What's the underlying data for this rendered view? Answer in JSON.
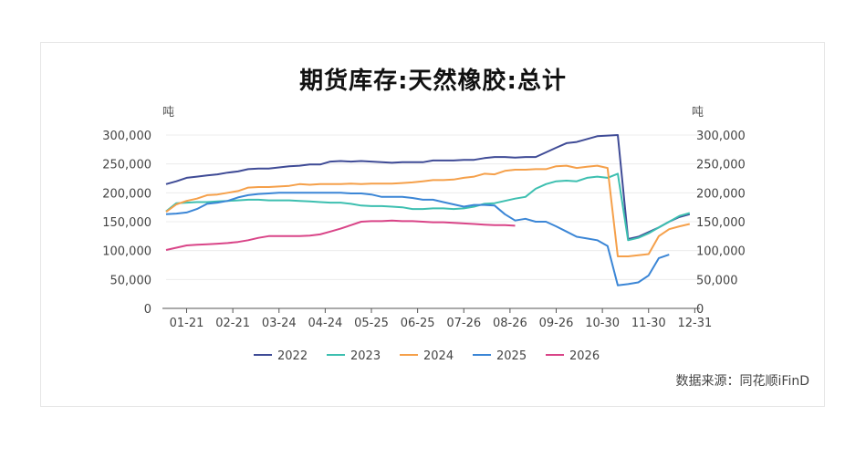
{
  "chart_data": {
    "type": "line",
    "title": "期货库存:天然橡胶:总计",
    "unit_left": "吨",
    "unit_right": "吨",
    "source": "数据来源：同花顺iFinD",
    "ylim": [
      0,
      300000
    ],
    "yticks": [
      "300,000",
      "250,000",
      "200,000",
      "150,000",
      "100,000",
      "50,000",
      "0"
    ],
    "ytick_values": [
      300000,
      250000,
      200000,
      150000,
      100000,
      50000,
      0
    ],
    "xlim": [
      0,
      52
    ],
    "x_tick_labels": [
      "01-21",
      "02-21",
      "03-24",
      "04-24",
      "05-25",
      "06-25",
      "07-26",
      "08-26",
      "09-26",
      "10-30",
      "11-30",
      "12-31"
    ],
    "x_tick_values": [
      2,
      6.5,
      11,
      15.5,
      20,
      24.5,
      29,
      33.5,
      38,
      42.5,
      47,
      51.5
    ],
    "legend_position": "bottom",
    "grid": true,
    "series": [
      {
        "name": "2022",
        "color": "#3f4b96",
        "points": [
          [
            0,
            215000
          ],
          [
            1,
            220000
          ],
          [
            2,
            226000
          ],
          [
            3,
            228000
          ],
          [
            4,
            230000
          ],
          [
            5,
            232000
          ],
          [
            6,
            235000
          ],
          [
            7,
            237000
          ],
          [
            8,
            241000
          ],
          [
            9,
            242000
          ],
          [
            10,
            242000
          ],
          [
            11,
            244000
          ],
          [
            12,
            246000
          ],
          [
            13,
            247000
          ],
          [
            14,
            249000
          ],
          [
            15,
            249000
          ],
          [
            16,
            254000
          ],
          [
            17,
            255000
          ],
          [
            18,
            254000
          ],
          [
            19,
            255000
          ],
          [
            20,
            254000
          ],
          [
            21,
            253000
          ],
          [
            22,
            252000
          ],
          [
            23,
            253000
          ],
          [
            24,
            253000
          ],
          [
            25,
            253000
          ],
          [
            26,
            256000
          ],
          [
            27,
            256000
          ],
          [
            28,
            256000
          ],
          [
            29,
            257000
          ],
          [
            30,
            257000
          ],
          [
            31,
            260000
          ],
          [
            32,
            262000
          ],
          [
            33,
            262000
          ],
          [
            34,
            261000
          ],
          [
            35,
            262000
          ],
          [
            36,
            262000
          ],
          [
            37,
            270000
          ],
          [
            38,
            278000
          ],
          [
            39,
            286000
          ],
          [
            40,
            288000
          ],
          [
            41,
            293000
          ],
          [
            42,
            298000
          ],
          [
            43,
            299000
          ],
          [
            44,
            300000
          ],
          [
            45,
            120000
          ],
          [
            46,
            124000
          ],
          [
            47,
            132000
          ],
          [
            48,
            140000
          ],
          [
            49,
            150000
          ],
          [
            50,
            158000
          ],
          [
            51,
            163000
          ]
        ]
      },
      {
        "name": "2023",
        "color": "#3dbfb0",
        "points": [
          [
            0,
            168000
          ],
          [
            1,
            182000
          ],
          [
            2,
            183000
          ],
          [
            3,
            184000
          ],
          [
            4,
            184000
          ],
          [
            5,
            185000
          ],
          [
            6,
            186000
          ],
          [
            7,
            187000
          ],
          [
            8,
            188000
          ],
          [
            9,
            188000
          ],
          [
            10,
            187000
          ],
          [
            11,
            187000
          ],
          [
            12,
            187000
          ],
          [
            13,
            186000
          ],
          [
            14,
            185000
          ],
          [
            15,
            184000
          ],
          [
            16,
            183000
          ],
          [
            17,
            183000
          ],
          [
            18,
            181000
          ],
          [
            19,
            178000
          ],
          [
            20,
            177000
          ],
          [
            21,
            177000
          ],
          [
            22,
            176000
          ],
          [
            23,
            175000
          ],
          [
            24,
            172000
          ],
          [
            25,
            172000
          ],
          [
            26,
            173000
          ],
          [
            27,
            173000
          ],
          [
            28,
            172000
          ],
          [
            29,
            173000
          ],
          [
            30,
            176000
          ],
          [
            31,
            181000
          ],
          [
            32,
            182000
          ],
          [
            33,
            186000
          ],
          [
            34,
            190000
          ],
          [
            35,
            193000
          ],
          [
            36,
            207000
          ],
          [
            37,
            215000
          ],
          [
            38,
            220000
          ],
          [
            39,
            221000
          ],
          [
            40,
            220000
          ],
          [
            41,
            226000
          ],
          [
            42,
            228000
          ],
          [
            43,
            226000
          ],
          [
            44,
            233000
          ],
          [
            45,
            118000
          ],
          [
            46,
            122000
          ],
          [
            47,
            130000
          ],
          [
            48,
            140000
          ],
          [
            49,
            150000
          ],
          [
            50,
            160000
          ],
          [
            51,
            165000
          ]
        ]
      },
      {
        "name": "2024",
        "color": "#f5a04a",
        "points": [
          [
            0,
            167000
          ],
          [
            1,
            180000
          ],
          [
            2,
            186000
          ],
          [
            3,
            190000
          ],
          [
            4,
            196000
          ],
          [
            5,
            197000
          ],
          [
            6,
            200000
          ],
          [
            7,
            203000
          ],
          [
            8,
            209000
          ],
          [
            9,
            210000
          ],
          [
            10,
            210000
          ],
          [
            11,
            211000
          ],
          [
            12,
            212000
          ],
          [
            13,
            215000
          ],
          [
            14,
            214000
          ],
          [
            15,
            215000
          ],
          [
            16,
            215000
          ],
          [
            17,
            215000
          ],
          [
            18,
            216000
          ],
          [
            19,
            215000
          ],
          [
            20,
            216000
          ],
          [
            21,
            216000
          ],
          [
            22,
            216000
          ],
          [
            23,
            217000
          ],
          [
            24,
            218000
          ],
          [
            25,
            220000
          ],
          [
            26,
            222000
          ],
          [
            27,
            222000
          ],
          [
            28,
            223000
          ],
          [
            29,
            226000
          ],
          [
            30,
            228000
          ],
          [
            31,
            233000
          ],
          [
            32,
            232000
          ],
          [
            33,
            238000
          ],
          [
            34,
            240000
          ],
          [
            35,
            240000
          ],
          [
            36,
            241000
          ],
          [
            37,
            241000
          ],
          [
            38,
            246000
          ],
          [
            39,
            247000
          ],
          [
            40,
            243000
          ],
          [
            41,
            245000
          ],
          [
            42,
            247000
          ],
          [
            43,
            243000
          ],
          [
            44,
            90000
          ],
          [
            45,
            90000
          ],
          [
            46,
            92000
          ],
          [
            47,
            94000
          ],
          [
            48,
            125000
          ],
          [
            49,
            137000
          ],
          [
            50,
            142000
          ],
          [
            51,
            146000
          ]
        ]
      },
      {
        "name": "2025",
        "color": "#3b86d6",
        "points": [
          [
            0,
            163000
          ],
          [
            1,
            164000
          ],
          [
            2,
            166000
          ],
          [
            3,
            172000
          ],
          [
            4,
            181000
          ],
          [
            5,
            183000
          ],
          [
            6,
            186000
          ],
          [
            7,
            192000
          ],
          [
            8,
            196000
          ],
          [
            9,
            198000
          ],
          [
            10,
            199000
          ],
          [
            11,
            200000
          ],
          [
            12,
            200000
          ],
          [
            13,
            200000
          ],
          [
            14,
            200000
          ],
          [
            15,
            200000
          ],
          [
            16,
            200000
          ],
          [
            17,
            200000
          ],
          [
            18,
            199000
          ],
          [
            19,
            199000
          ],
          [
            20,
            197000
          ],
          [
            21,
            193000
          ],
          [
            22,
            193000
          ],
          [
            23,
            193000
          ],
          [
            24,
            191000
          ],
          [
            25,
            188000
          ],
          [
            26,
            188000
          ],
          [
            27,
            184000
          ],
          [
            28,
            180000
          ],
          [
            29,
            176000
          ],
          [
            30,
            179000
          ],
          [
            31,
            179000
          ],
          [
            32,
            178000
          ],
          [
            33,
            163000
          ],
          [
            34,
            152000
          ],
          [
            35,
            155000
          ],
          [
            36,
            150000
          ],
          [
            37,
            150000
          ],
          [
            38,
            142000
          ],
          [
            39,
            133000
          ],
          [
            40,
            124000
          ],
          [
            41,
            121000
          ],
          [
            42,
            118000
          ],
          [
            43,
            108000
          ],
          [
            44,
            40000
          ],
          [
            45,
            42000
          ],
          [
            46,
            45000
          ],
          [
            47,
            57000
          ],
          [
            48,
            87000
          ],
          [
            49,
            93000
          ]
        ]
      },
      {
        "name": "2026",
        "color": "#d94588",
        "points": [
          [
            0,
            101000
          ],
          [
            1,
            105000
          ],
          [
            2,
            109000
          ],
          [
            3,
            110000
          ],
          [
            4,
            111000
          ],
          [
            5,
            112000
          ],
          [
            6,
            113000
          ],
          [
            7,
            115000
          ],
          [
            8,
            118000
          ],
          [
            9,
            122000
          ],
          [
            10,
            125000
          ],
          [
            11,
            125000
          ],
          [
            12,
            125000
          ],
          [
            13,
            125000
          ],
          [
            14,
            126000
          ],
          [
            15,
            128000
          ],
          [
            16,
            133000
          ],
          [
            17,
            138000
          ],
          [
            18,
            144000
          ],
          [
            19,
            150000
          ],
          [
            20,
            151000
          ],
          [
            21,
            151000
          ],
          [
            22,
            152000
          ],
          [
            23,
            151000
          ],
          [
            24,
            151000
          ],
          [
            25,
            150000
          ],
          [
            26,
            149000
          ],
          [
            27,
            149000
          ],
          [
            28,
            148000
          ],
          [
            29,
            147000
          ],
          [
            30,
            146000
          ],
          [
            31,
            145000
          ],
          [
            32,
            144000
          ],
          [
            33,
            144000
          ],
          [
            34,
            143000
          ]
        ]
      }
    ]
  }
}
